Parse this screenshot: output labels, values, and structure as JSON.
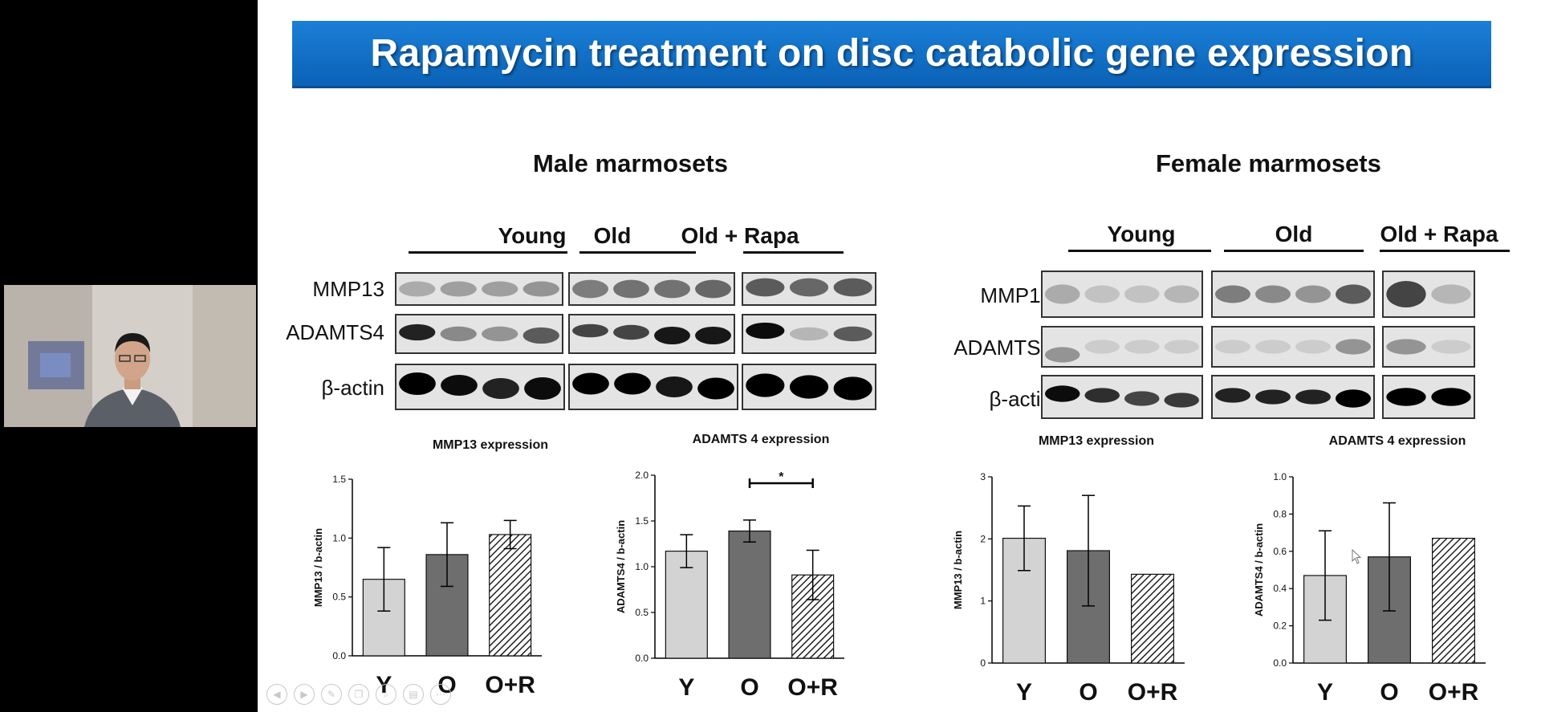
{
  "slide": {
    "title": "Rapamycin treatment on disc catabolic gene expression",
    "male_heading": "Male marmosets",
    "female_heading": "Female marmosets",
    "lane_groups": [
      "Young",
      "Old",
      "Old + Rapa"
    ],
    "blot_labels": [
      "MMP13",
      "ADAMTS4",
      "β-actin"
    ]
  },
  "colors": {
    "title_banner": "#0b62b6",
    "young_bar": "#d3d3d3",
    "old_bar": "#6e6e6e",
    "old_rapa_bar": "hatched"
  },
  "presenter_toolbar": [
    "prev-icon",
    "next-icon",
    "pen-icon",
    "copy-icon",
    "zoom-icon",
    "subtitles-icon",
    "more-icon"
  ],
  "chart_data": [
    {
      "type": "bar",
      "title": "MMP13 expression",
      "ylabel": "MMP13 / b-actin",
      "categories": [
        "Y",
        "O",
        "O+R"
      ],
      "values": [
        0.65,
        0.86,
        1.03
      ],
      "errors": [
        0.27,
        0.27,
        0.12
      ],
      "ylim": [
        0,
        1.5
      ],
      "yticks": [
        "0.0",
        "0.5",
        "1.0",
        "1.5"
      ],
      "significance": null
    },
    {
      "type": "bar",
      "title": "ADAMTS 4 expression",
      "ylabel": "ADAMTS4 / b-actin",
      "categories": [
        "Y",
        "O",
        "O+R"
      ],
      "values": [
        1.17,
        1.39,
        0.91
      ],
      "errors": [
        0.18,
        0.12,
        0.27
      ],
      "ylim": [
        0,
        2.0
      ],
      "yticks": [
        "0.0",
        "0.5",
        "1.0",
        "1.5",
        "2.0"
      ],
      "significance": {
        "between": [
          "O",
          "O+R"
        ],
        "label": "*"
      }
    },
    {
      "type": "bar",
      "title": "MMP13 expression",
      "ylabel": "MMP13 / b-actin",
      "categories": [
        "Y",
        "O",
        "O+R"
      ],
      "values": [
        2.01,
        1.81,
        1.43
      ],
      "errors": [
        0.52,
        0.89,
        null
      ],
      "ylim": [
        0,
        3
      ],
      "yticks": [
        "0",
        "1",
        "2",
        "3"
      ],
      "significance": null
    },
    {
      "type": "bar",
      "title": "ADAMTS 4 expression",
      "ylabel": "ADAMTS4 / b-actin",
      "categories": [
        "Y",
        "O",
        "O+R"
      ],
      "values": [
        0.47,
        0.57,
        0.67
      ],
      "errors": [
        0.24,
        0.29,
        null
      ],
      "ylim": [
        0,
        1.0
      ],
      "yticks": [
        "0.0",
        "0.2",
        "0.4",
        "0.6",
        "0.8",
        "1.0"
      ],
      "significance": null
    }
  ]
}
